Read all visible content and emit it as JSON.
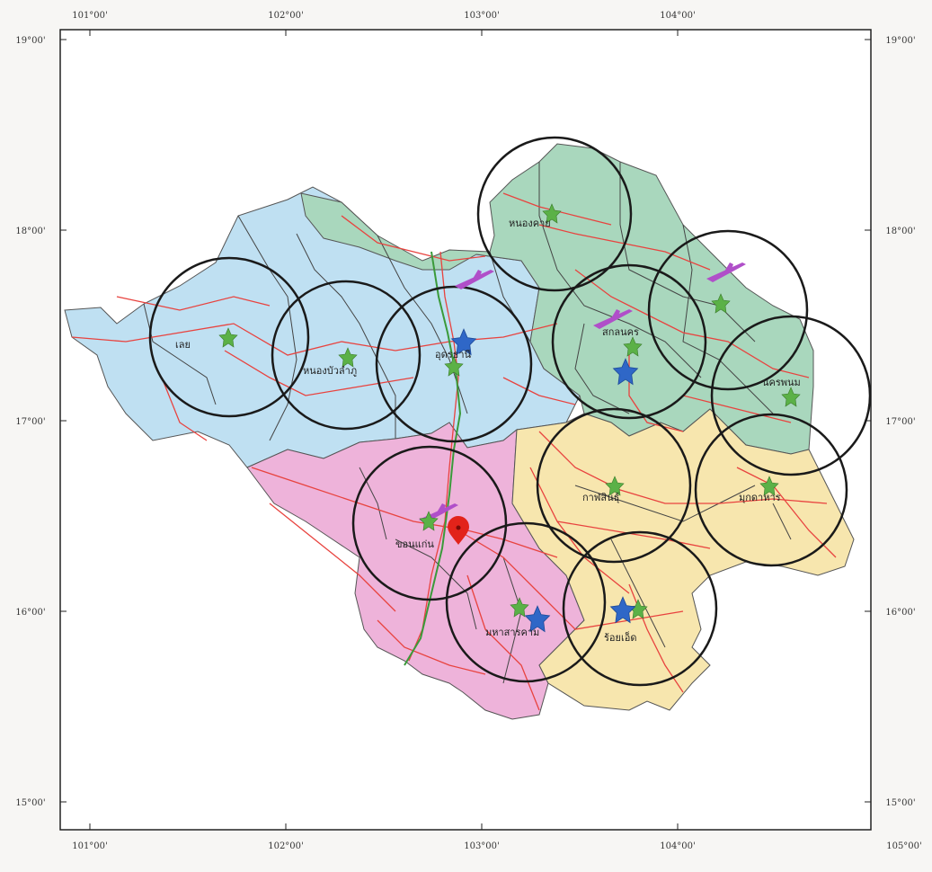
{
  "map": {
    "ticks_top": [
      "101°00'",
      "102°00'",
      "103°00'",
      "104°00'"
    ],
    "ticks_bottom": [
      "101°00'",
      "102°00'",
      "103°00'",
      "104°00'",
      "105°00'"
    ],
    "ticks_left": [
      "19°00'",
      "18°00'",
      "17°00'",
      "16°00'",
      "15°00'"
    ],
    "ticks_right": [
      "19°00'",
      "18°00'",
      "17°00'",
      "16°00'",
      "15°00'"
    ],
    "places": {
      "loei": "เลย",
      "nongbualamphu": "หนองบัวลำภู",
      "udonthani": "อุดรธานี",
      "nongkhai": "หนองคาย",
      "sakonnakhon": "สกลนคร",
      "nakhonphanom": "นครพนม",
      "kalasin": "กาฬสินธุ์",
      "mukdahan": "มุกดาหาร",
      "khonkaen": "ขอนแก่น",
      "mahasarakham": "มหาสารคาม",
      "roiet": "ร้อยเอ็ด"
    },
    "colors": {
      "zone_blue": "#bfe0f2",
      "zone_green": "#a9d7bd",
      "zone_pink": "#eeb3da",
      "zone_yellow": "#f7e6ae",
      "road": "#e8433f",
      "range_circle": "#1a1a1a",
      "green_star": "#5bb147",
      "blue_star": "#2f67c7",
      "airport": "#b04fc9",
      "hub_marker": "#e2231a"
    },
    "icons": [
      "green-star-icon",
      "blue-star-icon",
      "airport-icon",
      "hub-marker-icon"
    ]
  }
}
